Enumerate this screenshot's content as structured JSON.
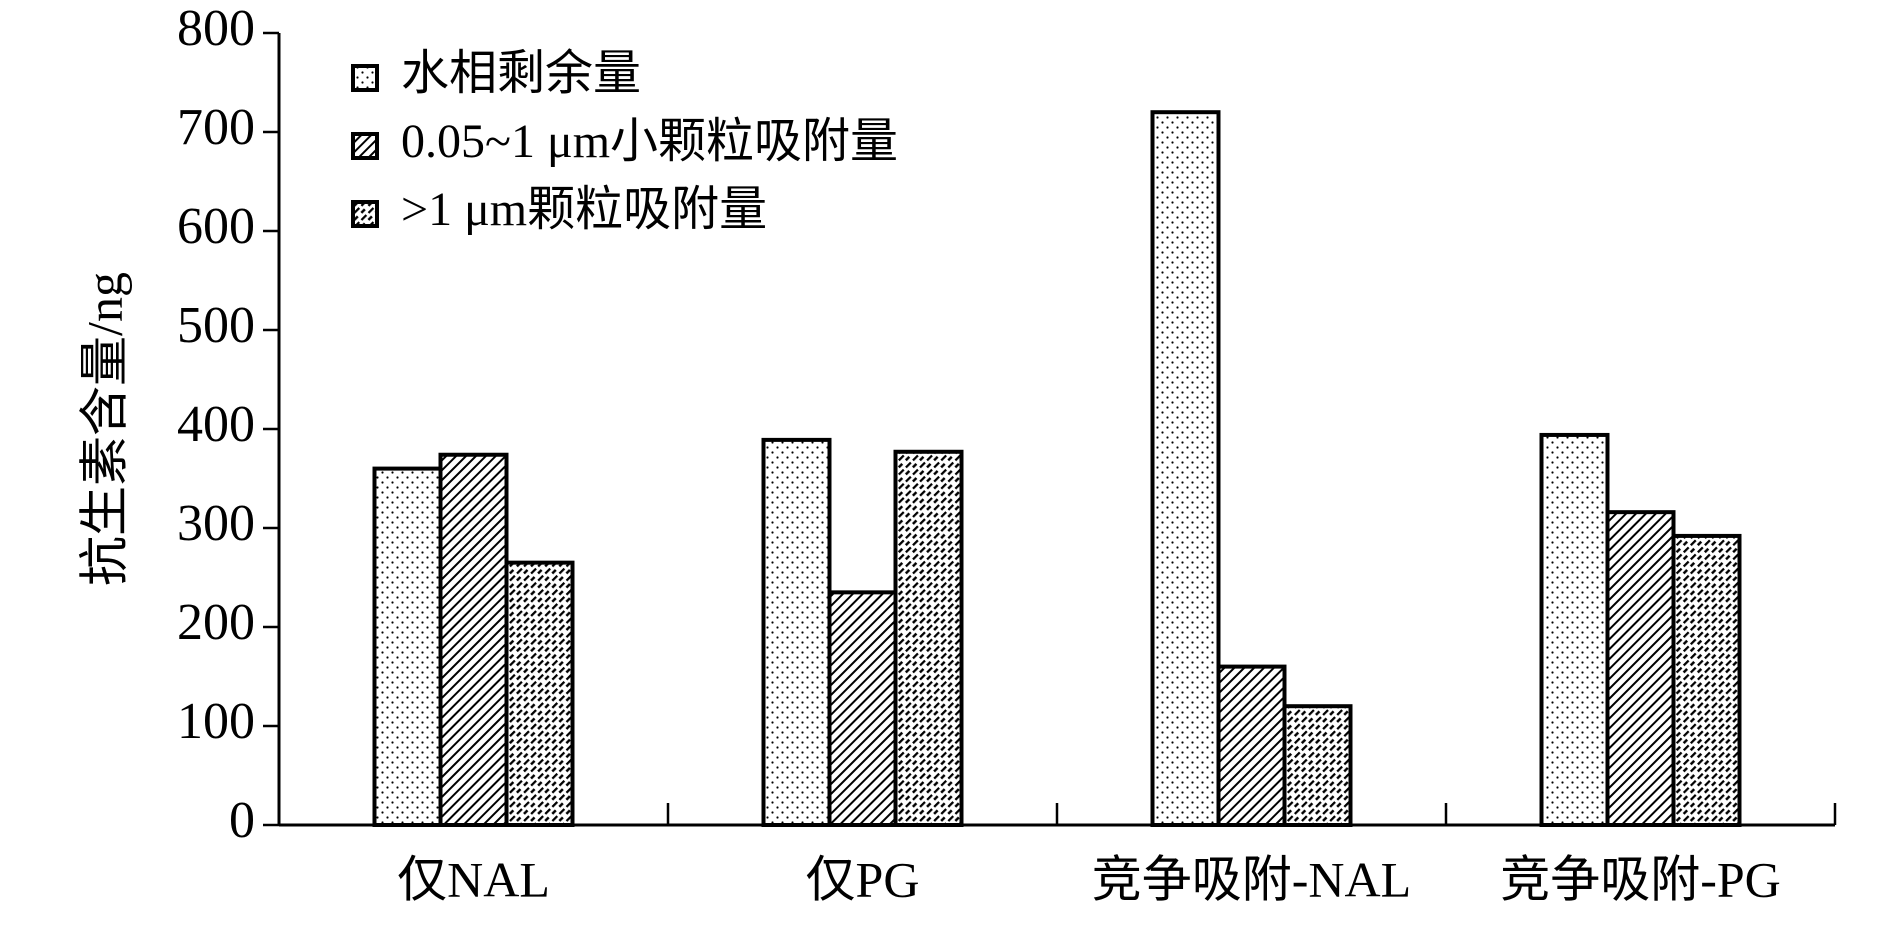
{
  "chart_data": {
    "type": "bar",
    "y_label": "抗生素含量/ng",
    "categories": [
      "仅NAL",
      "仅PG",
      "竞争吸附-NAL",
      "竞争吸附-PG"
    ],
    "series": [
      {
        "name": "水相剩余量",
        "color": "#000000",
        "pattern": "dots",
        "values": [
          360,
          389,
          720,
          394
        ]
      },
      {
        "name": "0.05~1 μm小颗粒吸附量",
        "color": "#000000",
        "pattern": "hatch",
        "values": [
          374,
          235,
          160,
          316
        ]
      },
      {
        "name": ">1 μm颗粒吸附量",
        "color": "#000000",
        "pattern": "dash",
        "values": [
          265,
          377,
          120,
          292
        ]
      }
    ],
    "ylim": [
      0,
      800
    ],
    "yticks": [
      0,
      100,
      200,
      300,
      400,
      500,
      600,
      700,
      800
    ],
    "legend": "upper-left"
  }
}
